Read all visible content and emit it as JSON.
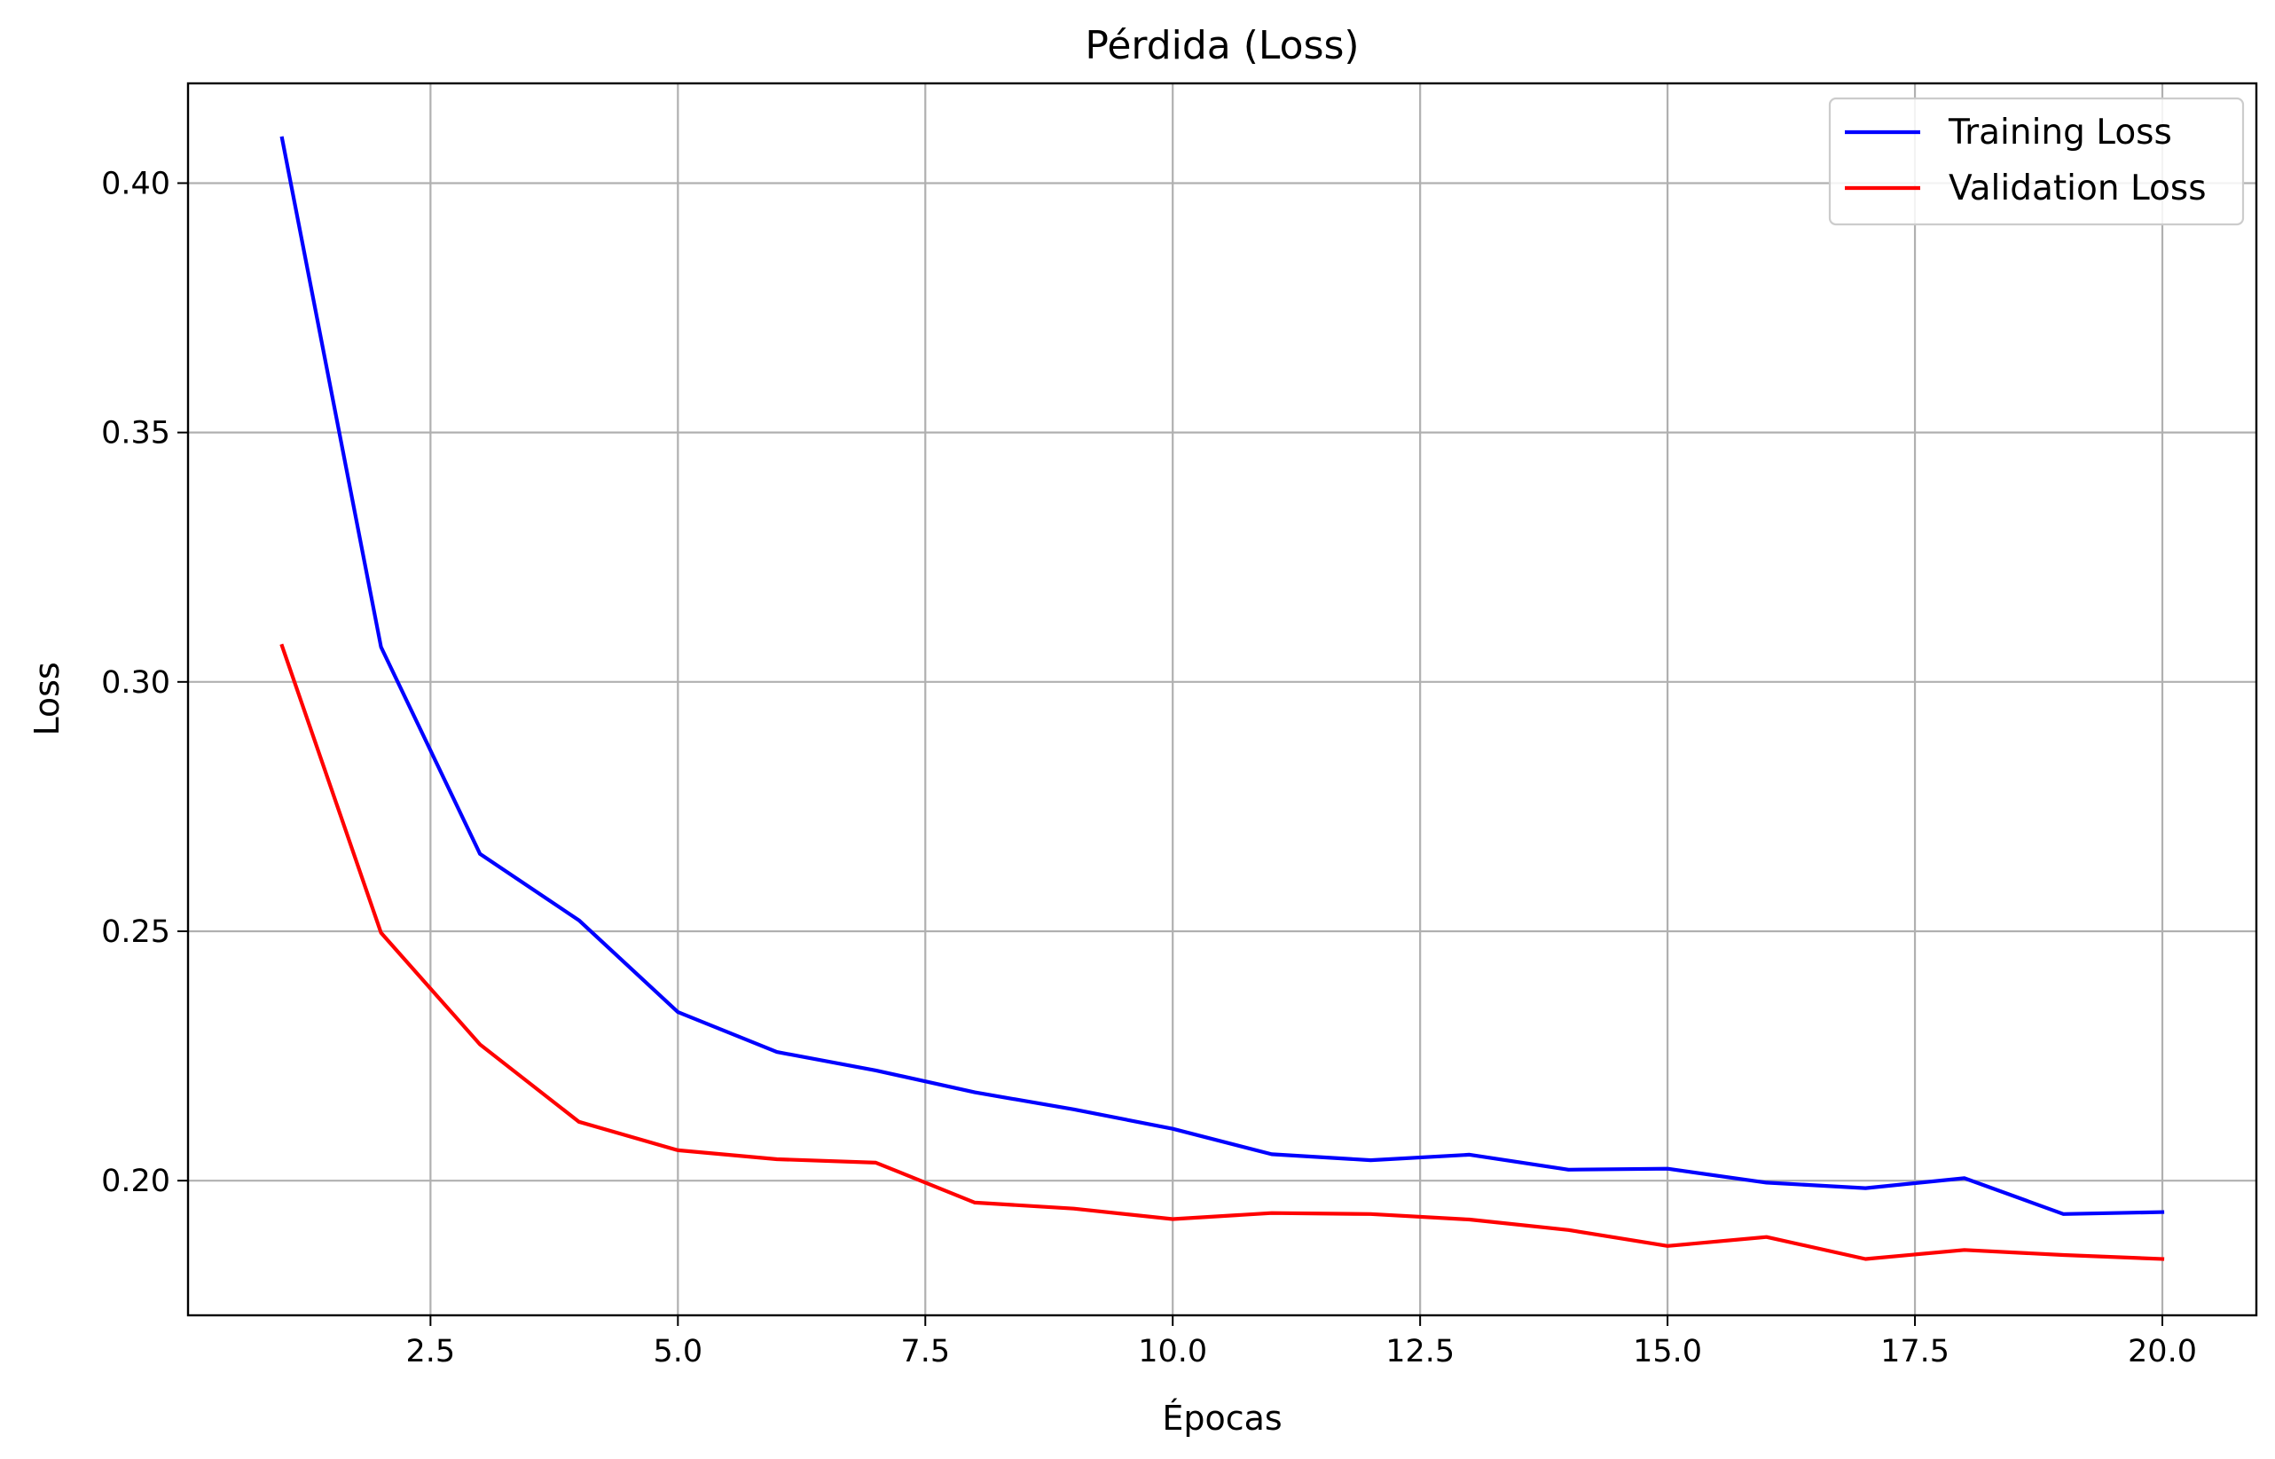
{
  "chart_data": {
    "type": "line",
    "title": "Pérdida (Loss)",
    "xlabel": "Épocas",
    "ylabel": "Loss",
    "xlim": [
      0.05,
      20.95
    ],
    "ylim": [
      0.173,
      0.42
    ],
    "x_ticks": [
      2.5,
      5.0,
      7.5,
      10.0,
      12.5,
      15.0,
      17.5,
      20.0
    ],
    "x_tick_labels": [
      "2.5",
      "5.0",
      "7.5",
      "10.0",
      "12.5",
      "15.0",
      "17.5",
      "20.0"
    ],
    "y_ticks": [
      0.2,
      0.25,
      0.3,
      0.35,
      0.4
    ],
    "y_tick_labels": [
      "0.20",
      "0.25",
      "0.30",
      "0.35",
      "0.40"
    ],
    "grid": true,
    "legend_position": "top-right",
    "x": [
      1,
      2,
      3,
      4,
      5,
      6,
      7,
      8,
      9,
      10,
      11,
      12,
      13,
      14,
      15,
      16,
      17,
      18,
      19,
      20
    ],
    "series": [
      {
        "name": "Training Loss",
        "color": "#0000ff",
        "values": [
          0.409,
          0.307,
          0.2655,
          0.2522,
          0.2338,
          0.2258,
          0.2221,
          0.2177,
          0.2143,
          0.2104,
          0.2053,
          0.2041,
          0.2052,
          0.2022,
          0.2024,
          0.1996,
          0.1985,
          0.2005,
          0.1933,
          0.1937
        ]
      },
      {
        "name": "Validation Loss",
        "color": "#ff0000",
        "values": [
          0.3072,
          0.2497,
          0.2273,
          0.2118,
          0.2061,
          0.2043,
          0.2036,
          0.1956,
          0.1944,
          0.1923,
          0.1935,
          0.1933,
          0.1922,
          0.1901,
          0.1869,
          0.1887,
          0.1843,
          0.1861,
          0.1851,
          0.1843
        ]
      }
    ]
  }
}
